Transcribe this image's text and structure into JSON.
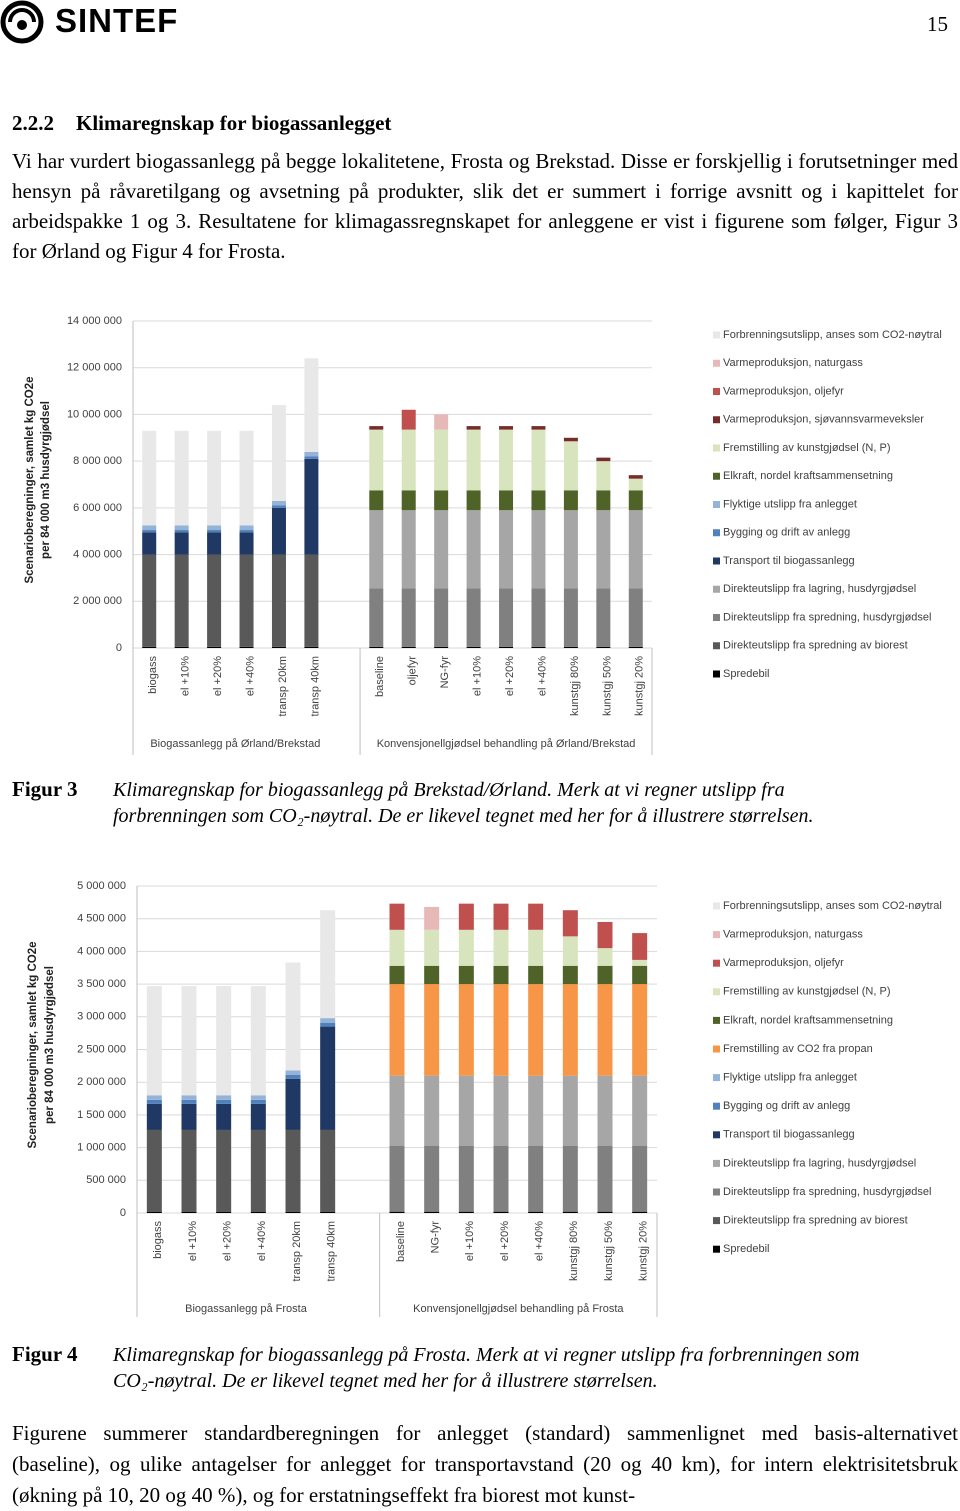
{
  "header": {
    "logo_text": "SINTEF",
    "page_number": "15"
  },
  "section": {
    "number": "2.2.2",
    "title": "Klimaregnskap for biogassanlegget"
  },
  "paragraphs": [
    "Vi har vurdert biogassanlegg på begge lokalitetene, Frosta og Brekstad. Disse er forskjellig i forutsetninger med hensyn på råvaretilgang og avsetning på produkter, slik det er summert i forrige avsnitt og i kapittelet for arbeidspakke 1 og 3. Resultatene for klimagassregnskapet for anleggene er vist i figurene som følger, Figur 3 for Ørland og Figur 4 for Frosta.",
    "Figurene summerer standardberegningen for anlegget (standard) sammenlignet med basis-alternativet (baseline), og ulike antagelser for anlegget for transportavstand (20 og 40 km), for intern elektrisitetsbruk (økning på 10, 20 og 40 %), og for erstatningseffekt fra biorest mot kunst-"
  ],
  "figures": [
    {
      "label": "Figur 3",
      "caption": "Klimaregnskap for biogassanlegg på Brekstad/Ørland. Merk at vi regner utslipp fra forbrenningen som CO₂-nøytral. De er likevel tegnet med her for å illustrere størrelsen."
    },
    {
      "label": "Figur 4",
      "caption": "Klimaregnskap for biogassanlegg på Frosta. Merk at vi regner utslipp fra forbrenningen som CO₂-nøytral. De er likevel tegnet med her for å illustrere størrelsen."
    }
  ],
  "chart_data": [
    {
      "type": "bar",
      "stacked": true,
      "grid": true,
      "legend": "right",
      "y_label": [
        "Scenarioberegninger, samlet kg CO2e",
        "per  84 000 m3 husdyrgjødsel"
      ],
      "groups": [
        "Biogassanlegg på Ørland/Brekstad",
        "Konvensjonellgjødsel behandling på Ørland/Brekstad"
      ],
      "categories": [
        "biogass",
        "el +10%",
        "el +20%",
        "el +40%",
        "transp 20km",
        "transp 40km",
        "baseline",
        "oljefyr",
        "NG-fyr",
        "el +10%",
        "el +20%",
        "el +40%",
        "kunstgj 80%",
        "kunstgj 50%",
        "kunstgj 20%"
      ],
      "ylim": [
        0,
        14000000
      ],
      "yticks": [
        0,
        {
          "value": 2000000,
          "label": "2 000 000"
        },
        {
          "value": 4000000,
          "label": "4 000 000"
        },
        {
          "value": 6000000,
          "label": "6 000 000"
        },
        {
          "value": 8000000,
          "label": "8 000 000"
        },
        {
          "value": 10000000,
          "label": "10 000 000"
        },
        {
          "value": 12000000,
          "label": "12 000 000"
        },
        {
          "value": 14000000,
          "label": "14 000 000"
        }
      ],
      "series": [
        {
          "name": "Forbrenningsutslipp, anses som CO2-nøytral",
          "color": "#e8e8e8",
          "values": [
            4050000,
            4050000,
            4050000,
            4050000,
            4100000,
            4000000,
            0,
            0,
            0,
            0,
            0,
            0,
            0,
            0,
            0
          ]
        },
        {
          "name": "Varmeproduksjon, naturgass",
          "color": "#e6b9b8",
          "values": [
            0,
            0,
            0,
            0,
            0,
            0,
            0,
            0,
            650000,
            0,
            0,
            0,
            0,
            0,
            0
          ]
        },
        {
          "name": "Varmeproduksjon, oljefyr",
          "color": "#c0504d",
          "values": [
            0,
            0,
            0,
            0,
            0,
            0,
            0,
            850000,
            0,
            0,
            0,
            0,
            0,
            0,
            0
          ]
        },
        {
          "name": "Varmeproduksjon, sjøvannsvarmeveksler",
          "color": "#772c2a",
          "values": [
            0,
            0,
            0,
            0,
            0,
            0,
            150000,
            0,
            0,
            150000,
            150000,
            150000,
            150000,
            150000,
            150000
          ]
        },
        {
          "name": "Fremstilling av kunstgjødsel (N, P)",
          "color": "#d7e4bd",
          "values": [
            0,
            0,
            0,
            0,
            0,
            0,
            2600000,
            2600000,
            2600000,
            2600000,
            2600000,
            2600000,
            2100000,
            1250000,
            500000
          ]
        },
        {
          "name": "Elkraft, nordel kraftsammensetning",
          "color": "#4f6228",
          "values": [
            0,
            0,
            0,
            0,
            0,
            0,
            850000,
            850000,
            850000,
            850000,
            850000,
            850000,
            850000,
            850000,
            850000
          ]
        },
        {
          "name": "Flyktige utslipp fra anlegget",
          "color": "#95b3d7",
          "values": [
            200000,
            200000,
            200000,
            200000,
            200000,
            200000,
            0,
            0,
            0,
            0,
            0,
            0,
            0,
            0,
            0
          ]
        },
        {
          "name": "Bygging og drift av anlegg",
          "color": "#4f81bd",
          "values": [
            100000,
            100000,
            100000,
            100000,
            100000,
            100000,
            0,
            0,
            0,
            0,
            0,
            0,
            0,
            0,
            0
          ]
        },
        {
          "name": "Transport til biogassanlegg",
          "color": "#1f3864",
          "values": [
            950000,
            950000,
            950000,
            950000,
            2000000,
            4100000,
            0,
            0,
            0,
            0,
            0,
            0,
            0,
            0,
            0
          ]
        },
        {
          "name": "Direkteutslipp fra lagring, husdyrgjødsel",
          "color": "#a6a6a6",
          "values": [
            0,
            0,
            0,
            0,
            0,
            0,
            3350000,
            3350000,
            3350000,
            3350000,
            3350000,
            3350000,
            3350000,
            3350000,
            3350000
          ]
        },
        {
          "name": "Direkteutslipp fra spredning, husdyrgjødsel",
          "color": "#808080",
          "values": [
            0,
            0,
            0,
            0,
            0,
            0,
            2500000,
            2500000,
            2500000,
            2500000,
            2500000,
            2500000,
            2500000,
            2500000,
            2500000
          ]
        },
        {
          "name": "Direkteutslipp fra spredning av biorest",
          "color": "#595959",
          "values": [
            3950000,
            3950000,
            3950000,
            3950000,
            3950000,
            3950000,
            0,
            0,
            0,
            0,
            0,
            0,
            0,
            0,
            0
          ]
        },
        {
          "name": "Spredebil",
          "color": "#000000",
          "values": [
            50000,
            50000,
            50000,
            50000,
            50000,
            50000,
            50000,
            50000,
            50000,
            50000,
            50000,
            50000,
            50000,
            50000,
            50000
          ]
        }
      ]
    },
    {
      "type": "bar",
      "stacked": true,
      "grid": true,
      "legend": "right",
      "y_label": [
        "Scenarioberegninger, samlet kg CO2e",
        "per  84 000 m3 husdyrgjødsel"
      ],
      "groups": [
        "Biogassanlegg på Frosta",
        "Konvensjonellgjødsel behandling på Frosta"
      ],
      "categories": [
        "biogass",
        "el +10%",
        "el +20%",
        "el +40%",
        "transp 20km",
        "transp 40km",
        "baseline",
        "NG-fyr",
        "el +10%",
        "el +20%",
        "el +40%",
        "kunstgj 80%",
        "kunstgj 50%",
        "kunstgj 20%"
      ],
      "ylim": [
        0,
        5000000
      ],
      "yticks": [
        0,
        {
          "value": 500000,
          "label": "500 000"
        },
        {
          "value": 1000000,
          "label": "1 000 000"
        },
        {
          "value": 1500000,
          "label": "1 500 000"
        },
        {
          "value": 2000000,
          "label": "2 000 000"
        },
        {
          "value": 2500000,
          "label": "2 500 000"
        },
        {
          "value": 3000000,
          "label": "3 000 000"
        },
        {
          "value": 3500000,
          "label": "3 500 000"
        },
        {
          "value": 4000000,
          "label": "4 000 000"
        },
        {
          "value": 4500000,
          "label": "4 500 000"
        },
        {
          "value": 5000000,
          "label": "5 000 000"
        }
      ],
      "series": [
        {
          "name": "Forbrenningsutslipp, anses som CO2-nøytral",
          "color": "#e8e8e8",
          "values": [
            1670000,
            1670000,
            1670000,
            1670000,
            1650000,
            1650000,
            0,
            0,
            0,
            0,
            0,
            0,
            0,
            0
          ]
        },
        {
          "name": "Varmeproduksjon, naturgass",
          "color": "#e6b9b8",
          "values": [
            0,
            0,
            0,
            0,
            0,
            0,
            0,
            350000,
            0,
            0,
            0,
            0,
            0,
            0
          ]
        },
        {
          "name": "Varmeproduksjon, oljefyr",
          "color": "#c0504d",
          "values": [
            0,
            0,
            0,
            0,
            0,
            0,
            400000,
            0,
            400000,
            400000,
            400000,
            400000,
            400000,
            410000
          ]
        },
        {
          "name": "Fremstilling av kunstgjødsel (N, P)",
          "color": "#d7e4bd",
          "values": [
            0,
            0,
            0,
            0,
            0,
            0,
            550000,
            550000,
            550000,
            550000,
            550000,
            450000,
            270000,
            90000
          ]
        },
        {
          "name": "Elkraft, nordel kraftsammensetning",
          "color": "#4f6228",
          "values": [
            0,
            0,
            0,
            0,
            0,
            0,
            280000,
            280000,
            280000,
            280000,
            280000,
            280000,
            280000,
            280000
          ]
        },
        {
          "name": "Fremstilling av CO2 fra propan",
          "color": "#f79646",
          "values": [
            0,
            0,
            0,
            0,
            0,
            0,
            1400000,
            1400000,
            1400000,
            1400000,
            1400000,
            1400000,
            1400000,
            1400000
          ]
        },
        {
          "name": "Flyktige utslipp fra anlegget",
          "color": "#95b3d7",
          "values": [
            70000,
            70000,
            70000,
            70000,
            70000,
            70000,
            0,
            0,
            0,
            0,
            0,
            0,
            0,
            0
          ]
        },
        {
          "name": "Bygging og drift av anlegg",
          "color": "#4f81bd",
          "values": [
            60000,
            60000,
            60000,
            60000,
            60000,
            60000,
            0,
            0,
            0,
            0,
            0,
            0,
            0,
            0
          ]
        },
        {
          "name": "Transport til biogassanlegg",
          "color": "#1f3864",
          "values": [
            400000,
            400000,
            400000,
            400000,
            780000,
            1580000,
            0,
            0,
            0,
            0,
            0,
            0,
            0,
            0
          ]
        },
        {
          "name": "Direkteutslipp fra lagring, husdyrgjødsel",
          "color": "#a6a6a6",
          "values": [
            0,
            0,
            0,
            0,
            0,
            0,
            1070000,
            1070000,
            1070000,
            1070000,
            1070000,
            1070000,
            1070000,
            1070000
          ]
        },
        {
          "name": "Direkteutslipp fra spredning, husdyrgjødsel",
          "color": "#808080",
          "values": [
            0,
            0,
            0,
            0,
            0,
            0,
            1010000,
            1010000,
            1010000,
            1010000,
            1010000,
            1010000,
            1010000,
            1010000
          ]
        },
        {
          "name": "Direkteutslipp fra spredning av biorest",
          "color": "#595959",
          "values": [
            1250000,
            1250000,
            1250000,
            1250000,
            1250000,
            1250000,
            0,
            0,
            0,
            0,
            0,
            0,
            0,
            0
          ]
        },
        {
          "name": "Spredebil",
          "color": "#000000",
          "values": [
            20000,
            20000,
            20000,
            20000,
            20000,
            20000,
            20000,
            20000,
            20000,
            20000,
            20000,
            20000,
            20000,
            20000
          ]
        }
      ]
    }
  ]
}
